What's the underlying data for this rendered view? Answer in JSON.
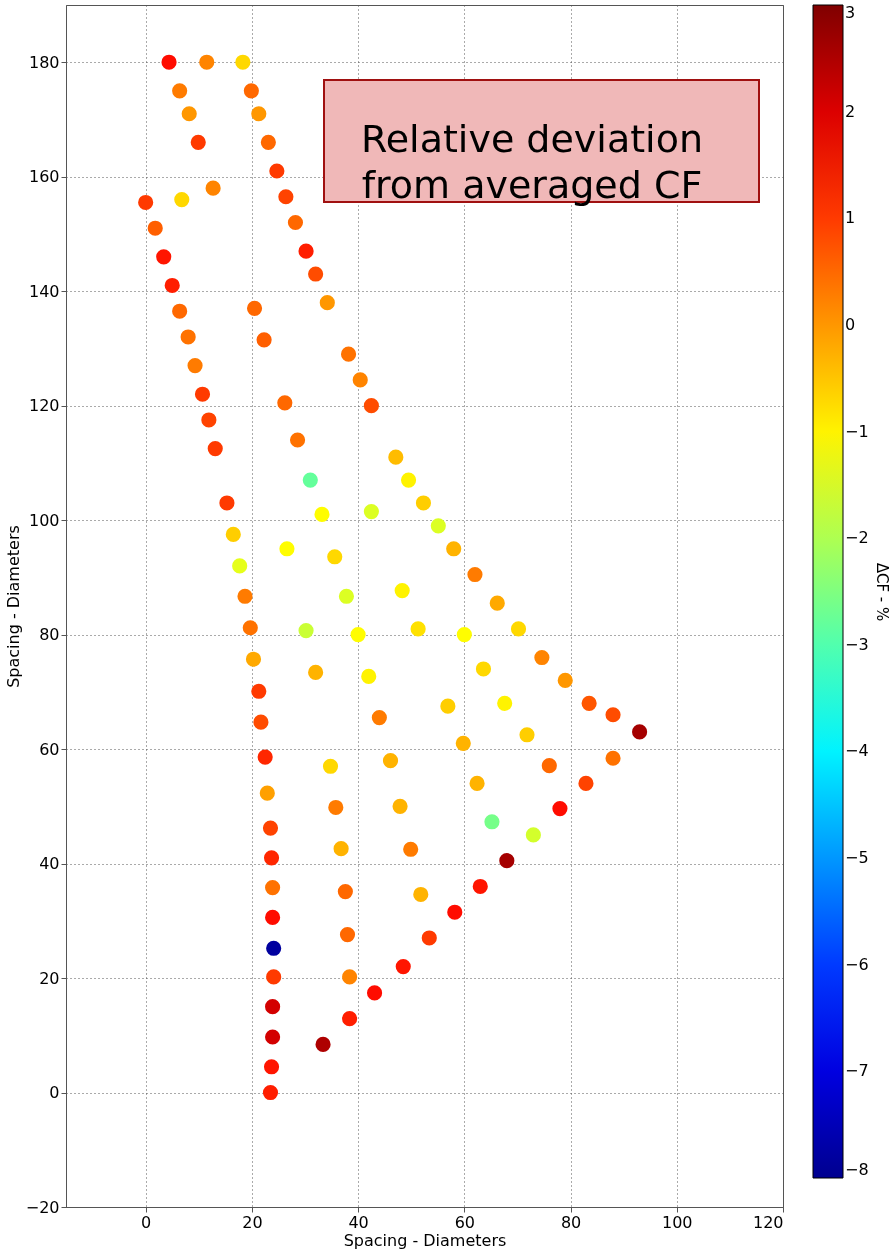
{
  "chart_data": {
    "type": "scatter",
    "xlabel": "Spacing - Diameters",
    "ylabel": "Spacing - Diameters",
    "clabel": "ΔCF - %",
    "xlim": [
      -15,
      120
    ],
    "xticks": [
      0,
      20,
      40,
      60,
      80,
      100,
      120
    ],
    "ylim": [
      -20,
      190
    ],
    "yticks": [
      -20,
      0,
      20,
      40,
      60,
      80,
      100,
      120,
      140,
      160,
      180
    ],
    "clim": [
      -8,
      3
    ],
    "cticks": [
      -8,
      -7,
      -6,
      -5,
      -4,
      -3,
      -2,
      -1,
      0,
      1,
      2,
      3
    ],
    "grid": true,
    "marker": "circle",
    "annotations": [
      "Relative deviation\nfrom averaged CF"
    ],
    "x": [
      4.4,
      11.5,
      18.3,
      6.4,
      8.2,
      9.9,
      19.9,
      21.3,
      23.1,
      24.7,
      26.4,
      28.2,
      30.2,
      32,
      34.2,
      0,
      6.8,
      12.7,
      1.8,
      3.4,
      5,
      6.4,
      8,
      9.3,
      10.7,
      11.9,
      13.1,
      20.5,
      22.3,
      38.2,
      40.4,
      42.5,
      26.2,
      28.6,
      15.3,
      16.5,
      31,
      33.2,
      42.5,
      47.1,
      49.5,
      52.3,
      55.1,
      58,
      62,
      66.2,
      70.2,
      74.6,
      79,
      83.5,
      88,
      93,
      88,
      82.9,
      78,
      73,
      68,
      65.2,
      76,
      67.6,
      71.8,
      59.8,
      62.4,
      56.9,
      63.6,
      60,
      51.3,
      48.3,
      42,
      44,
      46.1,
      47.9,
      49.9,
      40,
      37.8,
      35.6,
      30.2,
      32,
      34.8,
      35.8,
      36.8,
      26.6,
      17.7,
      18.7,
      19.7,
      20.3,
      21.3,
      21.7,
      22.5,
      22.9,
      23.5,
      23.7,
      23.9,
      23.9,
      24.1,
      24.1,
      23.9,
      23.9,
      23.7,
      23.5,
      33.4,
      38.4,
      43.1,
      48.5,
      38.4,
      38,
      37.6,
      51.8,
      53.4,
      58.2,
      63
    ],
    "values": [
      180,
      180,
      180,
      175,
      171,
      166,
      175,
      171,
      166,
      161,
      156.5,
      152,
      147,
      143,
      138,
      155.5,
      156,
      158,
      151,
      146,
      141,
      136.5,
      132,
      127,
      122,
      117.5,
      112.5,
      137,
      131.5,
      129,
      124.5,
      120,
      120.5,
      114,
      103,
      97.5,
      107,
      101,
      101.5,
      111,
      107,
      103,
      99,
      95,
      90.5,
      85.5,
      81,
      76,
      72,
      68,
      66,
      63,
      58.4,
      54,
      49.6,
      45,
      40.5,
      47.3,
      57.1,
      68,
      62.5,
      61,
      54,
      67.5,
      74,
      80,
      81,
      87.7,
      72.7,
      65.5,
      58,
      50,
      42.5,
      80,
      86.7,
      93.6,
      80.7,
      73.4,
      57,
      49.8,
      42.6,
      95,
      92,
      86.7,
      81.2,
      75.7,
      70.1,
      64.7,
      58.6,
      52.3,
      46.2,
      41,
      35.8,
      30.6,
      25.2,
      20.2,
      15,
      9.7,
      4.5,
      0,
      8.4,
      12.9,
      17.4,
      22,
      20.2,
      27.6,
      35.1,
      34.6,
      27,
      31.5,
      36
    ],
    "cvalues": [
      1.5,
      0.2,
      -0.7,
      0.3,
      0,
      1,
      0.5,
      0,
      0.5,
      1,
      0.9,
      0.5,
      1.3,
      0.8,
      0,
      1,
      -0.7,
      0.2,
      0.6,
      1.4,
      1.3,
      0.5,
      0.4,
      0.3,
      1,
      0.9,
      1,
      0.5,
      0.6,
      0.4,
      0.2,
      0.8,
      0.5,
      0.4,
      1,
      -0.6,
      -2.8,
      -1.1,
      -1.5,
      -0.4,
      -1,
      -0.6,
      -1.5,
      -0.3,
      0.3,
      -0.2,
      -0.7,
      0.2,
      0,
      0.7,
      0.8,
      2.6,
      0.4,
      0.9,
      1.5,
      -1.6,
      2.6,
      -2.6,
      0.5,
      -1,
      -0.6,
      -0.3,
      -0.3,
      -0.6,
      -0.7,
      -1.1,
      -0.8,
      -1,
      -1,
      0.3,
      -0.3,
      -0.3,
      0.3,
      -1.1,
      -1.5,
      -0.7,
      -1.7,
      -0.3,
      -0.7,
      0.3,
      -0.3,
      -1.1,
      -1.4,
      0.3,
      0.4,
      -0.2,
      1,
      0.8,
      1.2,
      -0.1,
      0.9,
      1.2,
      0.4,
      1.5,
      -7.8,
      1,
      2.1,
      2.1,
      1.4,
      1.3,
      2.5,
      1.3,
      1.5,
      1.4,
      0.2,
      0.5,
      0.5,
      -0.3,
      1,
      1.5,
      1.4
    ]
  }
}
